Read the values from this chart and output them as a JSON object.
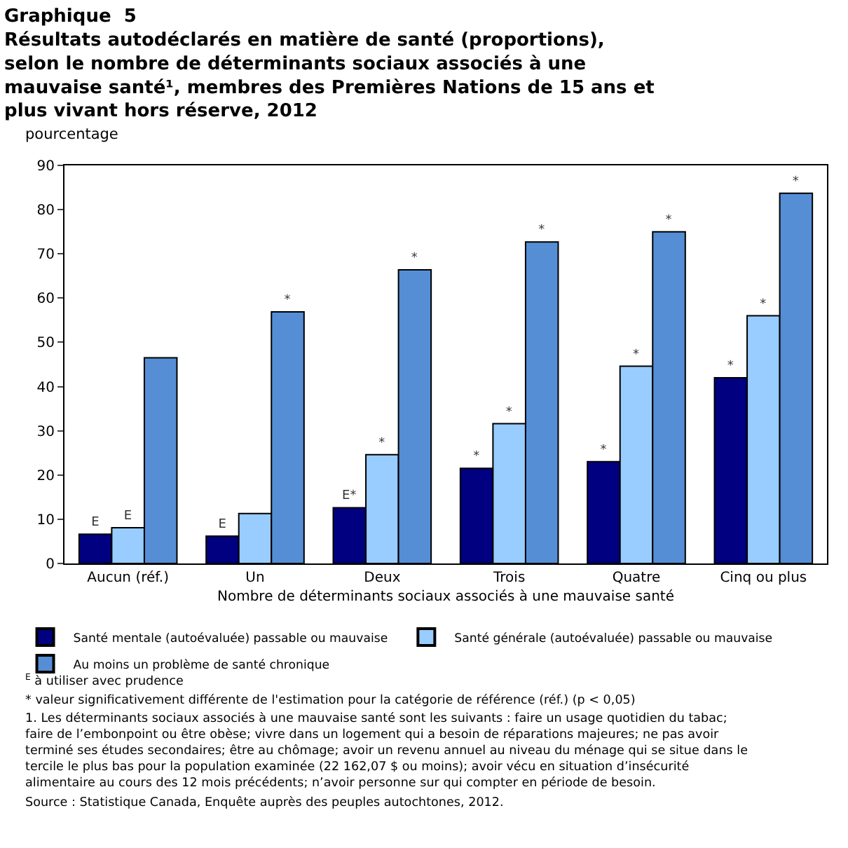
{
  "chart_data": {
    "type": "bar",
    "title": "Graphique  5",
    "subtitle": "Résultats autodéclarés en matière de santé (proportions), selon le nombre de déterminants sociaux associés à une mauvaise santé¹, membres des Premières Nations de 15 ans et plus vivant hors réserve, 2012",
    "ylabel": "pourcentage",
    "xlabel": "Nombre de déterminants sociaux associés à une mauvaise santé",
    "categories": [
      "Aucun (réf.)",
      "Un",
      "Deux",
      "Trois",
      "Quatre",
      "Cinq ou plus"
    ],
    "series": [
      {
        "name": "Santé mentale (autoévaluée) passable ou mauvaise",
        "color": "#000080",
        "values": [
          6.6,
          6.2,
          12.6,
          21.5,
          23.0,
          42.0
        ],
        "value_labels": [
          "E",
          "E",
          "E*",
          "*",
          "*",
          "*"
        ]
      },
      {
        "name": "Santé générale (autoévaluée) passable ou mauvaise",
        "color": "#99ccff",
        "values": [
          8.1,
          11.3,
          24.6,
          31.6,
          44.6,
          56.0
        ],
        "value_labels": [
          "E",
          null,
          "*",
          "*",
          "*",
          "*"
        ]
      },
      {
        "name": "Au moins un problème de santé chronique",
        "color": "#558ed5",
        "values": [
          46.5,
          56.9,
          66.4,
          72.7,
          75.0,
          83.7
        ],
        "value_labels": [
          null,
          "*",
          "*",
          "*",
          "*",
          "*"
        ]
      }
    ],
    "ylim": [
      0,
      90
    ],
    "yticks": [
      0,
      10,
      20,
      30,
      40,
      50,
      60,
      70,
      80,
      90
    ],
    "grid": false,
    "legend": "bottom",
    "annotations": [
      "$^{E}$ à utiliser avec prudence",
      "* valeur significativement différente de l'estimation pour la catégorie de référence (réf.) (p < 0,05)",
      "1. Les déterminants sociaux associés à une mauvaise santé sont les suivants : faire un usage quotidien du tabac; faire de l’embonpoint ou être obèse; vivre dans un logement qui a besoin de réparations majeures; ne pas avoir terminé ses études secondaires; être au chômage; avoir un revenu annuel au niveau du ménage qui se situe dans le tercile le plus bas pour la population examinée (22 162,07 $ ou moins); avoir vécu en situation d’insécurité alimentaire au cours des 12 mois précédents; n’avoir personne sur qui compter en période de besoin.",
      "Source : Statistique Canada, Enquête auprès des peuples autochtones, 2012."
    ]
  }
}
